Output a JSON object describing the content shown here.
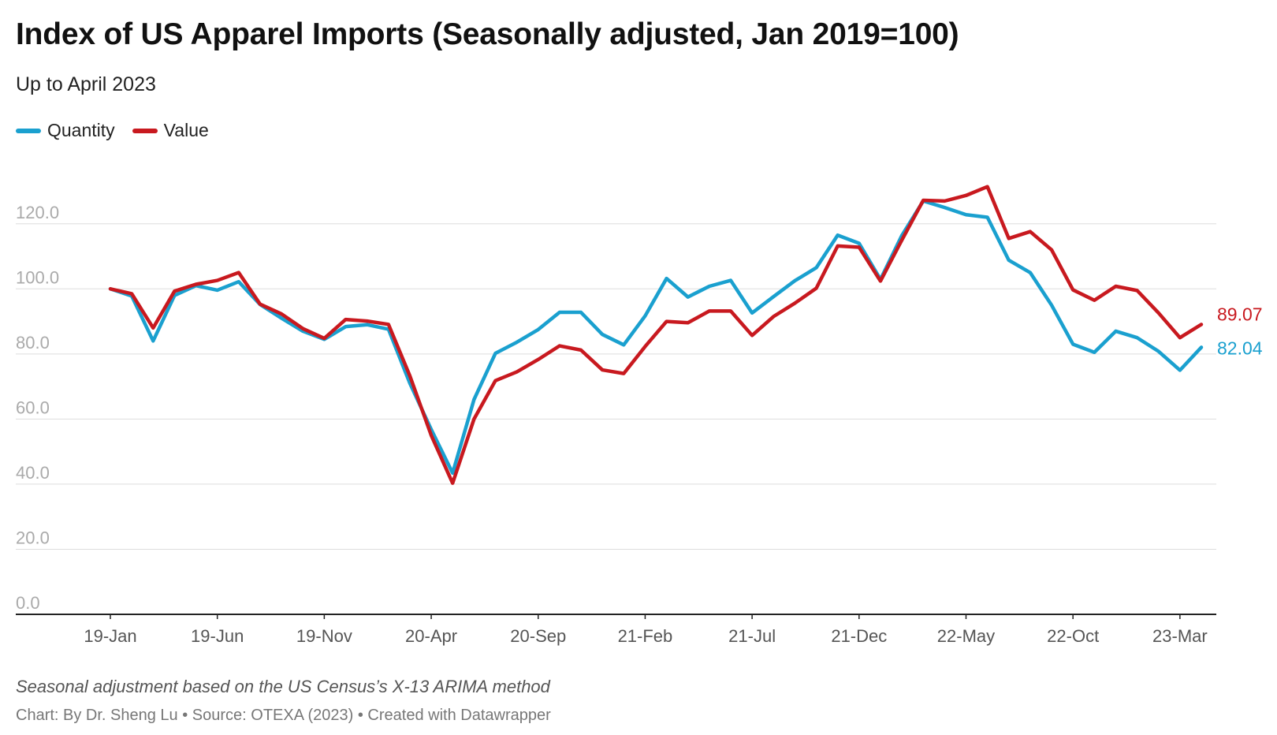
{
  "header": {
    "title": "Index of US Apparel Imports (Seasonally adjusted, Jan 2019=100)",
    "subtitle": "Up to April 2023"
  },
  "legend": [
    {
      "label": "Quantity",
      "color": "#1aa0cf"
    },
    {
      "label": "Value",
      "color": "#c8191f"
    }
  ],
  "footer": {
    "note": "Seasonal adjustment based on the US Census’s X-13 ARIMA method",
    "credit": "Chart: By Dr. Sheng Lu • Source: OTEXA (2023) • Created with Datawrapper"
  },
  "chart_data": {
    "type": "line",
    "title": "Index of US Apparel Imports (Seasonally adjusted, Jan 2019=100)",
    "subtitle": "Up to April 2023",
    "xlabel": "",
    "ylabel": "",
    "ylim": [
      0,
      120
    ],
    "yticks": [
      0,
      20,
      40,
      60,
      80,
      100,
      120
    ],
    "ytick_labels": [
      "0.0",
      "20.0",
      "40.0",
      "60.0",
      "80.0",
      "100.0",
      "120.0"
    ],
    "xtick_labels": [
      {
        "label": "19-Jan",
        "index": 0
      },
      {
        "label": "19-Jun",
        "index": 5
      },
      {
        "label": "19-Nov",
        "index": 10
      },
      {
        "label": "20-Apr",
        "index": 15
      },
      {
        "label": "20-Sep",
        "index": 20
      },
      {
        "label": "21-Feb",
        "index": 25
      },
      {
        "label": "21-Jul",
        "index": 30
      },
      {
        "label": "21-Dec",
        "index": 35
      },
      {
        "label": "22-May",
        "index": 40
      },
      {
        "label": "22-Oct",
        "index": 45
      },
      {
        "label": "23-Mar",
        "index": 50
      }
    ],
    "series": [
      {
        "name": "Quantity",
        "color": "#1aa0cf",
        "end_label": "82.04",
        "values": [
          100,
          97.8,
          84,
          98,
          101,
          99.6,
          102.2,
          95.2,
          91,
          87,
          84.5,
          88.4,
          89,
          87.6,
          71,
          56.8,
          43.4,
          66,
          80.2,
          83.6,
          87.5,
          92.8,
          92.8,
          86,
          82.8,
          91.7,
          103.2,
          97.5,
          100.8,
          102.6,
          92.6,
          97.6,
          102.5,
          106.5,
          116.5,
          114,
          102.9,
          116.4,
          127,
          125,
          122.8,
          122,
          108.8,
          105,
          95,
          83,
          80.5,
          87,
          85,
          80.8,
          75,
          82.04
        ]
      },
      {
        "name": "Value",
        "color": "#c8191f",
        "end_label": "89.07",
        "values": [
          100,
          98.5,
          88,
          99.3,
          101.4,
          102.6,
          105,
          95.3,
          92.3,
          87.8,
          84.8,
          90.6,
          90.1,
          89.1,
          73.3,
          55,
          40.3,
          60,
          71.8,
          74.5,
          78.3,
          82.5,
          81.2,
          75.1,
          74,
          82.3,
          90,
          89.6,
          93.2,
          93.2,
          85.7,
          91.5,
          95.6,
          100.2,
          113.2,
          112.8,
          102.4,
          115,
          127.2,
          127,
          128.7,
          131.4,
          115.5,
          117.6,
          112,
          99.7,
          96.5,
          100.8,
          99.5,
          92.6,
          85,
          89.07
        ]
      }
    ]
  }
}
